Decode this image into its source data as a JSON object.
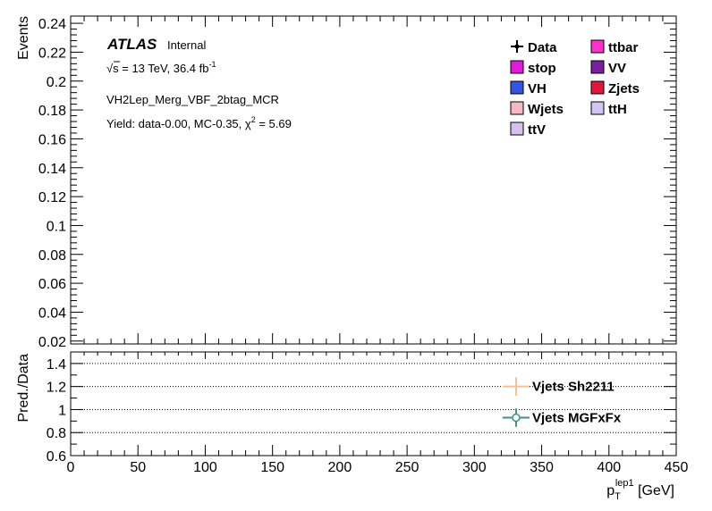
{
  "chart_data": {
    "type": "line",
    "atlas_label": "ATLAS",
    "atlas_status": "Internal",
    "lumi_label": {
      "sqrt": "√",
      "s": "s",
      "energy": " = 13 TeV, 36.4 fb",
      "sup": "-1"
    },
    "region": "VH2Lep_Merg_VBF_2btag_MCR",
    "yield_text": {
      "pre": "Yield: data-0.00, MC-0.35, χ",
      "sup": "2",
      "post": " = 5.69"
    },
    "main_panel": {
      "ylabel": "Events",
      "ylim": [
        0.018,
        0.245
      ],
      "yticks": [
        "0.02",
        "0.04",
        "0.06",
        "0.08",
        "0.1",
        "0.12",
        "0.14",
        "0.16",
        "0.18",
        "0.2",
        "0.22",
        "0.24"
      ],
      "ytick_values": [
        0.02,
        0.04,
        0.06,
        0.08,
        0.1,
        0.12,
        0.14,
        0.16,
        0.18,
        0.2,
        0.22,
        0.24
      ]
    },
    "legend": [
      {
        "label": "Data",
        "marker": "data",
        "color": "#000000"
      },
      {
        "label": "ttbar",
        "marker": "box",
        "color": "#ff33cc"
      },
      {
        "label": "stop",
        "marker": "box",
        "color": "#e01bd9"
      },
      {
        "label": "VV",
        "marker": "box",
        "color": "#7a1f9e"
      },
      {
        "label": "VH",
        "marker": "box",
        "color": "#3355e0"
      },
      {
        "label": "Zjets",
        "marker": "box",
        "color": "#e0183c"
      },
      {
        "label": "Wjets",
        "marker": "box",
        "color": "#f4b8c4"
      },
      {
        "label": "ttH",
        "marker": "box",
        "color": "#d4c4f4"
      },
      {
        "label": "ttV",
        "marker": "box",
        "color": "#d8c0f0"
      }
    ],
    "ratio_panel": {
      "ylabel": "Pred./Data",
      "ylim": [
        0.6,
        1.5
      ],
      "yticks": [
        "0.6",
        "0.8",
        "1",
        "1.2",
        "1.4"
      ],
      "ytick_values": [
        0.6,
        0.8,
        1.0,
        1.2,
        1.4
      ],
      "gridlines": [
        0.8,
        1.0,
        1.2,
        1.4
      ],
      "series": [
        {
          "name": "Vjets Sh2211",
          "color": "#f8c090",
          "x": 331,
          "y": 1.2,
          "xerr": 10,
          "yerr": 0.08,
          "open_marker": false
        },
        {
          "name": "Vjets MGFxFx",
          "color": "#3f8f8a",
          "x": 331,
          "y": 0.93,
          "xerr": 10,
          "yerr": 0.08,
          "open_marker": true
        }
      ]
    },
    "x_axis": {
      "xlabel": {
        "main": "p",
        "sub": "T",
        "sup": "lep1",
        "unit": " [GeV]"
      },
      "xlim": [
        0,
        450
      ],
      "xticks": [
        "0",
        "50",
        "100",
        "150",
        "200",
        "250",
        "300",
        "350",
        "400",
        "450"
      ],
      "xtick_values": [
        0,
        50,
        100,
        150,
        200,
        250,
        300,
        350,
        400,
        450
      ]
    }
  }
}
